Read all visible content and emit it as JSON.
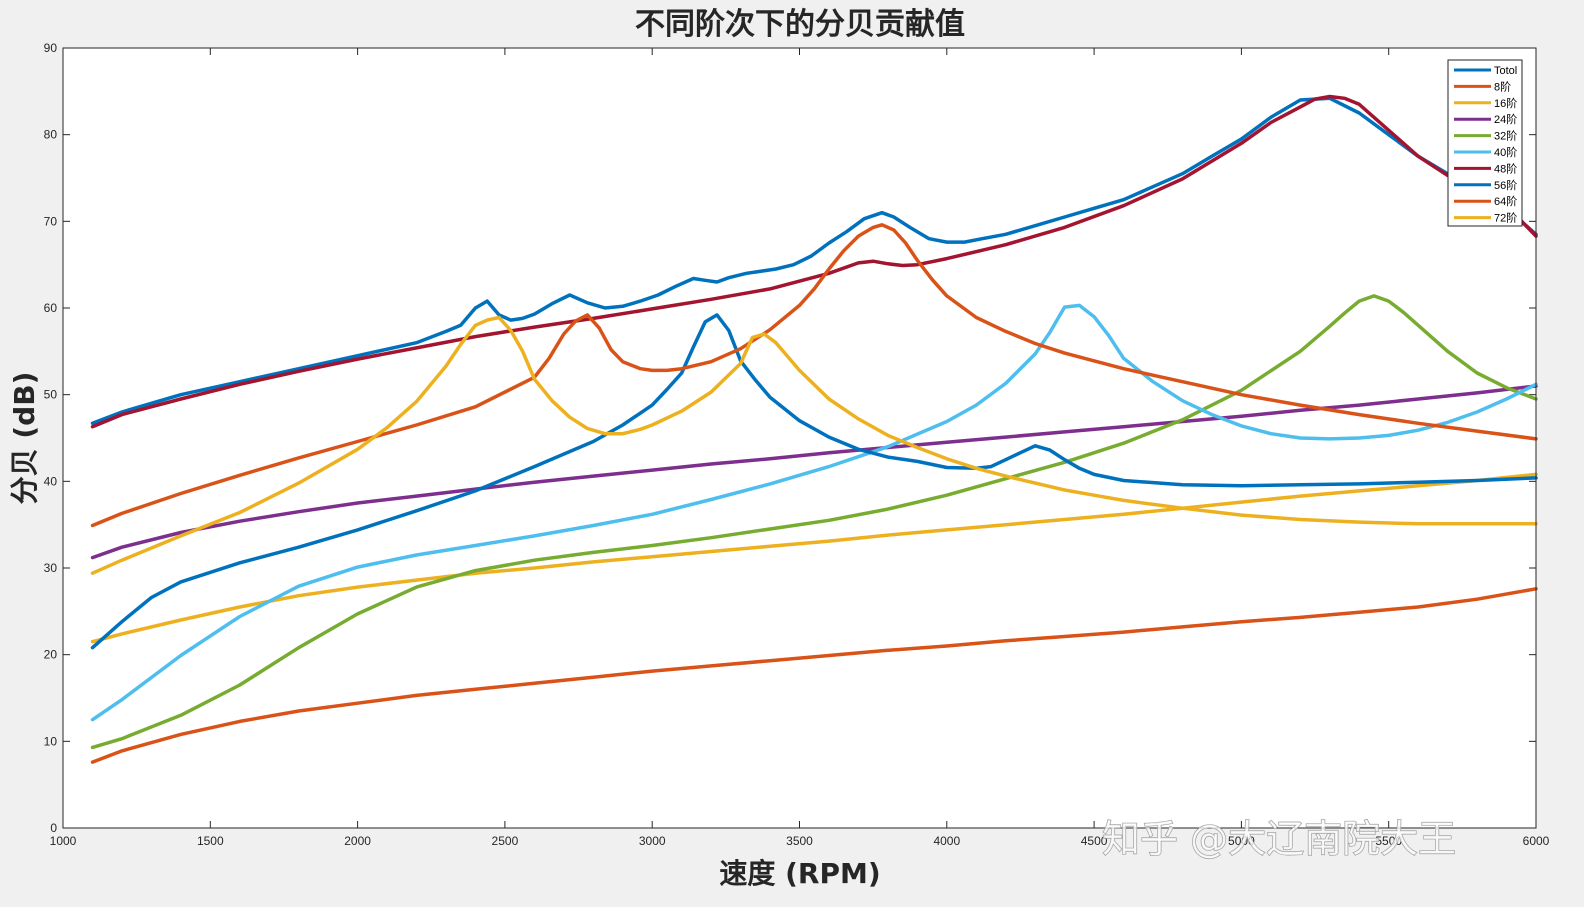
{
  "chart_data": {
    "type": "line",
    "title": "不同阶次下的分贝贡献值",
    "xlabel": "速度 (RPM)",
    "ylabel": "分贝 (dB)",
    "xlim": [
      1000,
      6000
    ],
    "ylim": [
      0,
      90
    ],
    "xticks": [
      1000,
      1500,
      2000,
      2500,
      3000,
      3500,
      4000,
      4500,
      5000,
      5500,
      6000
    ],
    "xtick_labels": [
      "1000",
      "1500",
      "2000",
      "2500",
      "3000",
      "3500",
      "4000",
      "4500",
      "5000",
      "5500",
      "6000"
    ],
    "yticks": [
      0,
      10,
      20,
      30,
      40,
      50,
      60,
      70,
      80,
      90
    ],
    "ytick_labels": [
      "0",
      "10",
      "20",
      "30",
      "40",
      "50",
      "60",
      "70",
      "80",
      "90"
    ],
    "grid": false,
    "legend_position": "top-right",
    "series": [
      {
        "name": "Totol",
        "color": "#0072BD",
        "x": [
          1100,
          1200,
          1400,
          1600,
          1800,
          2000,
          2200,
          2300,
          2350,
          2400,
          2440,
          2480,
          2520,
          2560,
          2600,
          2660,
          2720,
          2780,
          2840,
          2900,
          2960,
          3020,
          3080,
          3140,
          3180,
          3220,
          3260,
          3320,
          3360,
          3420,
          3480,
          3540,
          3600,
          3660,
          3720,
          3780,
          3820,
          3880,
          3940,
          4000,
          4060,
          4120,
          4200,
          4300,
          4400,
          4500,
          4600,
          4700,
          4800,
          4900,
          5000,
          5100,
          5200,
          5300,
          5400,
          5500,
          5600,
          5700,
          5800,
          5900,
          6000
        ],
        "y": [
          46.7,
          48.0,
          50.0,
          51.5,
          53.0,
          54.5,
          56.0,
          57.3,
          58.0,
          60.0,
          60.8,
          59.2,
          58.6,
          58.8,
          59.3,
          60.5,
          61.5,
          60.6,
          60.0,
          60.2,
          60.8,
          61.5,
          62.5,
          63.4,
          63.2,
          63.0,
          63.5,
          64.0,
          64.2,
          64.5,
          65.0,
          66.0,
          67.5,
          68.8,
          70.3,
          71.0,
          70.5,
          69.2,
          68.0,
          67.6,
          67.6,
          68.0,
          68.5,
          69.5,
          70.5,
          71.5,
          72.5,
          74.0,
          75.5,
          77.5,
          79.5,
          82.0,
          84.0,
          84.2,
          82.5,
          80.0,
          77.5,
          75.5,
          73.5,
          71.5,
          68.5
        ]
      },
      {
        "name": "8阶",
        "color": "#D95319",
        "x": [
          1100,
          1200,
          1400,
          1600,
          1800,
          2000,
          2200,
          2400,
          2600,
          2800,
          3000,
          3200,
          3400,
          3600,
          3800,
          4000,
          4200,
          4400,
          4600,
          4800,
          5000,
          5200,
          5400,
          5600,
          5800,
          6000
        ],
        "y": [
          7.6,
          8.9,
          10.8,
          12.3,
          13.5,
          14.4,
          15.3,
          16.0,
          16.7,
          17.4,
          18.1,
          18.7,
          19.3,
          19.9,
          20.5,
          21.0,
          21.6,
          22.1,
          22.6,
          23.2,
          23.8,
          24.3,
          24.9,
          25.5,
          26.4,
          27.6
        ]
      },
      {
        "name": "16阶",
        "color": "#EDB120",
        "x": [
          1100,
          1200,
          1400,
          1600,
          1800,
          2000,
          2200,
          2400,
          2600,
          2800,
          3000,
          3200,
          3400,
          3600,
          3800,
          4000,
          4200,
          4400,
          4600,
          4800,
          5000,
          5200,
          5400,
          5600,
          5800,
          6000
        ],
        "y": [
          21.5,
          22.4,
          24.0,
          25.5,
          26.8,
          27.8,
          28.6,
          29.4,
          30.0,
          30.7,
          31.3,
          31.9,
          32.5,
          33.1,
          33.8,
          34.4,
          35.0,
          35.6,
          36.2,
          36.9,
          37.6,
          38.3,
          38.9,
          39.5,
          40.1,
          40.8
        ]
      },
      {
        "name": "24阶",
        "color": "#7E2F8E",
        "x": [
          1100,
          1200,
          1400,
          1600,
          1800,
          2000,
          2200,
          2400,
          2600,
          2800,
          3000,
          3200,
          3400,
          3600,
          3800,
          4000,
          4200,
          4400,
          4600,
          4800,
          5000,
          5200,
          5400,
          5600,
          5800,
          6000
        ],
        "y": [
          31.2,
          32.4,
          34.1,
          35.4,
          36.5,
          37.5,
          38.3,
          39.1,
          39.9,
          40.6,
          41.3,
          42.0,
          42.6,
          43.3,
          43.9,
          44.5,
          45.1,
          45.7,
          46.3,
          46.9,
          47.5,
          48.2,
          48.8,
          49.5,
          50.2,
          51.0
        ]
      },
      {
        "name": "32阶",
        "color": "#77AC30",
        "x": [
          1100,
          1200,
          1400,
          1600,
          1800,
          2000,
          2200,
          2400,
          2600,
          2800,
          3000,
          3200,
          3400,
          3600,
          3800,
          4000,
          4200,
          4400,
          4600,
          4800,
          5000,
          5200,
          5300,
          5350,
          5400,
          5450,
          5500,
          5550,
          5600,
          5700,
          5800,
          5900,
          6000
        ],
        "y": [
          9.3,
          10.3,
          13.0,
          16.5,
          20.8,
          24.7,
          27.8,
          29.7,
          30.9,
          31.8,
          32.6,
          33.5,
          34.5,
          35.5,
          36.8,
          38.4,
          40.3,
          42.2,
          44.4,
          47.1,
          50.5,
          55.0,
          57.9,
          59.4,
          60.8,
          61.4,
          60.8,
          59.5,
          58.0,
          55.0,
          52.5,
          50.8,
          49.5
        ]
      },
      {
        "name": "40阶",
        "color": "#4DBEEE",
        "x": [
          1100,
          1200,
          1400,
          1600,
          1800,
          2000,
          2200,
          2400,
          2600,
          2800,
          3000,
          3200,
          3400,
          3600,
          3800,
          4000,
          4100,
          4200,
          4300,
          4350,
          4400,
          4450,
          4500,
          4550,
          4600,
          4700,
          4800,
          4900,
          5000,
          5100,
          5200,
          5300,
          5400,
          5500,
          5600,
          5700,
          5800,
          5900,
          6000
        ],
        "y": [
          12.5,
          14.8,
          19.9,
          24.4,
          27.9,
          30.1,
          31.5,
          32.6,
          33.7,
          34.9,
          36.2,
          37.9,
          39.7,
          41.7,
          44.0,
          46.9,
          48.8,
          51.3,
          54.7,
          57.2,
          60.1,
          60.3,
          59.0,
          56.8,
          54.2,
          51.5,
          49.3,
          47.7,
          46.4,
          45.5,
          45.0,
          44.9,
          45.0,
          45.3,
          45.9,
          46.8,
          48.0,
          49.5,
          51.2
        ]
      },
      {
        "name": "48阶",
        "color": "#A2142F",
        "x": [
          1100,
          1200,
          1400,
          1600,
          1800,
          2000,
          2200,
          2400,
          2600,
          2800,
          3000,
          3200,
          3400,
          3600,
          3700,
          3750,
          3800,
          3850,
          3900,
          4000,
          4200,
          4400,
          4600,
          4800,
          5000,
          5100,
          5200,
          5250,
          5300,
          5350,
          5400,
          5500,
          5600,
          5700,
          5800,
          5900,
          6000
        ],
        "y": [
          46.3,
          47.7,
          49.5,
          51.2,
          52.7,
          54.1,
          55.4,
          56.7,
          57.8,
          58.8,
          59.9,
          61.0,
          62.2,
          64.0,
          65.2,
          65.4,
          65.1,
          64.9,
          65.0,
          65.7,
          67.3,
          69.3,
          71.8,
          74.9,
          79.0,
          81.4,
          83.2,
          84.1,
          84.4,
          84.2,
          83.5,
          80.5,
          77.5,
          75.3,
          73.5,
          71.8,
          68.3
        ]
      },
      {
        "name": "56阶",
        "color": "#0072BD",
        "x": [
          1100,
          1200,
          1300,
          1400,
          1600,
          1800,
          2000,
          2200,
          2400,
          2600,
          2800,
          2900,
          3000,
          3050,
          3100,
          3140,
          3180,
          3220,
          3260,
          3300,
          3350,
          3400,
          3500,
          3600,
          3700,
          3800,
          3900,
          4000,
          4100,
          4150,
          4200,
          4250,
          4300,
          4350,
          4400,
          4450,
          4500,
          4600,
          4800,
          5000,
          5200,
          5400,
          5600,
          5800,
          6000
        ],
        "y": [
          20.8,
          23.8,
          26.6,
          28.4,
          30.6,
          32.4,
          34.4,
          36.6,
          38.9,
          41.7,
          44.6,
          46.5,
          48.8,
          50.6,
          52.5,
          55.5,
          58.4,
          59.2,
          57.4,
          53.9,
          51.7,
          49.7,
          47.0,
          45.1,
          43.7,
          42.8,
          42.3,
          41.6,
          41.5,
          41.7,
          42.5,
          43.3,
          44.1,
          43.6,
          42.5,
          41.5,
          40.8,
          40.1,
          39.6,
          39.5,
          39.6,
          39.7,
          39.9,
          40.1,
          40.4
        ]
      },
      {
        "name": "64阶",
        "color": "#D95319",
        "x": [
          1100,
          1200,
          1400,
          1600,
          1800,
          2000,
          2200,
          2400,
          2600,
          2650,
          2700,
          2740,
          2780,
          2820,
          2860,
          2900,
          2960,
          3000,
          3050,
          3100,
          3200,
          3300,
          3400,
          3500,
          3550,
          3600,
          3650,
          3700,
          3750,
          3780,
          3820,
          3860,
          3900,
          3950,
          4000,
          4100,
          4200,
          4300,
          4400,
          4600,
          4800,
          5000,
          5200,
          5400,
          5600,
          5800,
          6000
        ],
        "y": [
          34.9,
          36.3,
          38.6,
          40.7,
          42.7,
          44.6,
          46.5,
          48.6,
          52.0,
          54.2,
          57.0,
          58.5,
          59.2,
          57.7,
          55.2,
          53.8,
          53.0,
          52.8,
          52.8,
          53.0,
          53.8,
          55.3,
          57.5,
          60.3,
          62.2,
          64.5,
          66.6,
          68.3,
          69.3,
          69.6,
          69.0,
          67.5,
          65.5,
          63.3,
          61.4,
          58.9,
          57.3,
          55.9,
          54.8,
          53.0,
          51.5,
          50.0,
          48.8,
          47.7,
          46.7,
          45.8,
          44.9
        ]
      },
      {
        "name": "72阶",
        "color": "#EDB120",
        "x": [
          1100,
          1200,
          1400,
          1600,
          1800,
          2000,
          2100,
          2200,
          2300,
          2350,
          2400,
          2440,
          2480,
          2520,
          2560,
          2600,
          2660,
          2720,
          2780,
          2840,
          2900,
          2960,
          3000,
          3100,
          3200,
          3300,
          3340,
          3380,
          3420,
          3500,
          3600,
          3700,
          3800,
          3900,
          4000,
          4100,
          4200,
          4300,
          4400,
          4500,
          4600,
          4800,
          5000,
          5200,
          5400,
          5600,
          5800,
          6000
        ],
        "y": [
          29.4,
          30.9,
          33.7,
          36.4,
          39.8,
          43.7,
          46.2,
          49.2,
          53.3,
          55.8,
          58.0,
          58.6,
          58.9,
          57.4,
          55.0,
          51.8,
          49.3,
          47.4,
          46.1,
          45.5,
          45.5,
          46.0,
          46.5,
          48.1,
          50.3,
          53.6,
          56.6,
          57.0,
          56.0,
          52.8,
          49.5,
          47.2,
          45.3,
          43.9,
          42.6,
          41.5,
          40.6,
          39.8,
          39.0,
          38.4,
          37.8,
          36.9,
          36.1,
          35.6,
          35.3,
          35.1,
          35.1,
          35.1
        ]
      }
    ]
  },
  "watermark": "知乎 @大辽南院大王"
}
